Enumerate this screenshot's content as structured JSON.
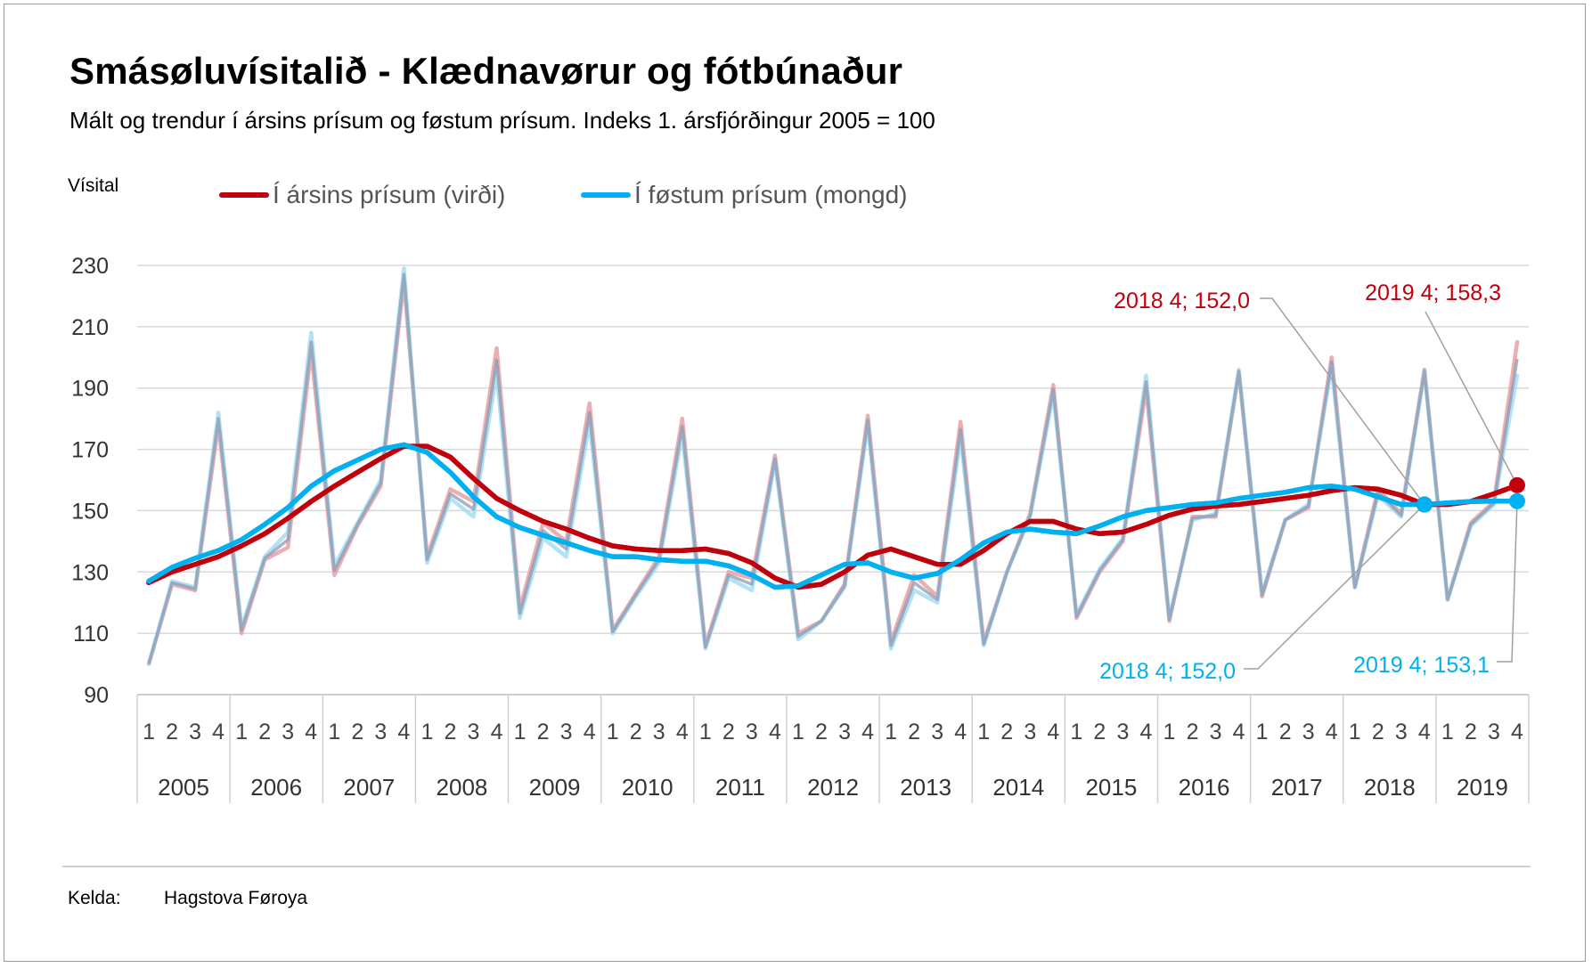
{
  "chart_data": {
    "type": "line",
    "title": "Smásøluvísitalið - Klædnavørur og fótbúnaður",
    "subtitle": "Mált og trendur í ársins prísum og føstum prísum. Indeks 1. ársfjórðingur 2005 = 100",
    "ylabel": "Vísital",
    "ylim": [
      90,
      230
    ],
    "yticks": [
      90,
      110,
      130,
      150,
      170,
      190,
      210,
      230
    ],
    "grid": true,
    "legend_position": "top-left",
    "years": [
      "2005",
      "2006",
      "2007",
      "2008",
      "2009",
      "2010",
      "2011",
      "2012",
      "2013",
      "2014",
      "2015",
      "2016",
      "2017",
      "2018",
      "2019"
    ],
    "quarters": [
      "1",
      "2",
      "3",
      "4"
    ],
    "series": [
      {
        "name": "Í ársins prísum (virði)",
        "kind": "measured",
        "color": "#e8a1a4",
        "values": [
          100,
          126,
          124,
          178,
          110,
          134,
          138,
          202,
          129,
          145,
          158,
          225,
          135,
          157,
          153,
          203,
          118,
          146,
          140,
          185,
          111,
          123,
          135,
          180,
          106,
          130,
          128,
          168,
          110,
          114,
          126,
          181,
          107,
          129,
          122,
          179,
          107,
          130,
          149,
          191,
          115,
          130,
          140,
          190,
          114,
          148,
          148,
          195,
          122,
          147,
          151,
          200,
          125,
          157,
          149,
          196,
          121,
          146,
          153,
          205
        ]
      },
      {
        "name": "Í føstum prísum (mongd)",
        "kind": "measured",
        "color": "#a6ddf2",
        "values": [
          100,
          127,
          125,
          182,
          112,
          135,
          143,
          208,
          132,
          146,
          160,
          229,
          133,
          154,
          148,
          195,
          115,
          141,
          135,
          179,
          110,
          122,
          133,
          175,
          105,
          128,
          124,
          166,
          108,
          114,
          125,
          178,
          105,
          124,
          120,
          174,
          106,
          130,
          148,
          188,
          116,
          131,
          141,
          194,
          115,
          147,
          149,
          196,
          123,
          147,
          152,
          197,
          125,
          155,
          148,
          195,
          121,
          145,
          152,
          194
        ]
      },
      {
        "name": "Í ársins prísum (virði)",
        "kind": "trend",
        "color": "#c0000b",
        "values": [
          126.5,
          130,
          132.5,
          135,
          138.5,
          142.5,
          147.5,
          153,
          158,
          162.5,
          167,
          171,
          171,
          167.5,
          160.5,
          154,
          150,
          146.5,
          144,
          141,
          138.5,
          137.5,
          137,
          137,
          137.5,
          136,
          133,
          128,
          125,
          126,
          130,
          135.5,
          137.5,
          135,
          132.5,
          132.5,
          137,
          142.5,
          146.5,
          146.5,
          144,
          142.5,
          143,
          145.5,
          148.5,
          150.5,
          151.5,
          152,
          153,
          154,
          155,
          156.5,
          157.5,
          157,
          155,
          152,
          152,
          153,
          155.5,
          158.3
        ]
      },
      {
        "name": "Í føstum prísum (mongd)",
        "kind": "trend",
        "color": "#00b0f0",
        "values": [
          127,
          131.5,
          134.5,
          137,
          140.5,
          145.5,
          151,
          158,
          163,
          166.5,
          170,
          171.5,
          169,
          162.5,
          154.5,
          148,
          144.5,
          142,
          139.5,
          137,
          135,
          135,
          134,
          133.5,
          133.5,
          132,
          129,
          125,
          125.5,
          129,
          132.5,
          133,
          130,
          128,
          129.5,
          134,
          139.5,
          143,
          144,
          143,
          142.5,
          145,
          148,
          150,
          151,
          152,
          152.5,
          154,
          155,
          156,
          157.5,
          158,
          157,
          154.5,
          152,
          152,
          152.5,
          153,
          153.1,
          153.1
        ]
      }
    ],
    "annotations": [
      {
        "text": "2018 4; 152,0",
        "series": "Í ársins prísum (virði)",
        "color": "#c0000b"
      },
      {
        "text": "2019 4; 158,3",
        "series": "Í ársins prísum (virði)",
        "color": "#c0000b"
      },
      {
        "text": "2018 4; 152,0",
        "series": "Í føstum prísum (mongd)",
        "color": "#00b0f0"
      },
      {
        "text": "2019 4; 153,1",
        "series": "Í føstum prísum (mongd)",
        "color": "#00b0f0"
      }
    ]
  },
  "legend": {
    "nominal": {
      "label": "Í ársins prísum (virði)",
      "color": "#c0000b"
    },
    "real": {
      "label": "Í føstum prísum (mongd)",
      "color": "#00b0f0"
    }
  },
  "footer": {
    "label": "Kelda:",
    "value": "Hagstova Føroya"
  }
}
